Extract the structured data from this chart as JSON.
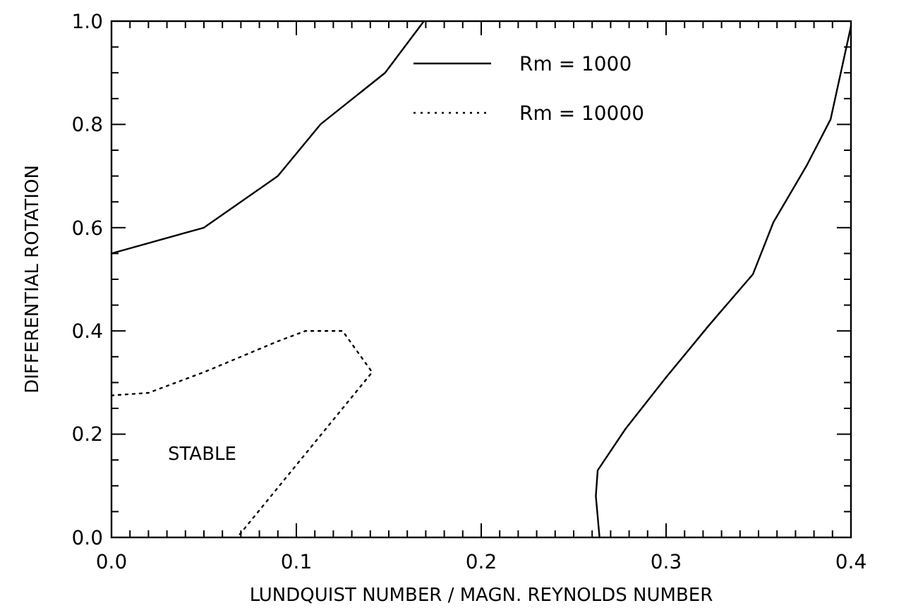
{
  "chart_data": {
    "type": "line",
    "xlabel": "LUNDQUIST NUMBER / MAGN. REYNOLDS NUMBER",
    "ylabel": "DIFFERENTIAL ROTATION",
    "xlim": [
      0,
      0.4
    ],
    "ylim": [
      0,
      1
    ],
    "xticks": [
      {
        "value": 0,
        "label": "0.0"
      },
      {
        "value": 0.01,
        "label": null
      },
      {
        "value": 0.02,
        "label": null
      },
      {
        "value": 0.03,
        "label": null
      },
      {
        "value": 0.04,
        "label": null
      },
      {
        "value": 0.05,
        "label": null
      },
      {
        "value": 0.06,
        "label": null
      },
      {
        "value": 0.07,
        "label": null
      },
      {
        "value": 0.08,
        "label": null
      },
      {
        "value": 0.09,
        "label": null
      },
      {
        "value": 0.1,
        "label": "0.1"
      },
      {
        "value": 0.11,
        "label": null
      },
      {
        "value": 0.12,
        "label": null
      },
      {
        "value": 0.13,
        "label": null
      },
      {
        "value": 0.14,
        "label": null
      },
      {
        "value": 0.15,
        "label": null
      },
      {
        "value": 0.16,
        "label": null
      },
      {
        "value": 0.17,
        "label": null
      },
      {
        "value": 0.18,
        "label": null
      },
      {
        "value": 0.19,
        "label": null
      },
      {
        "value": 0.2,
        "label": "0.2"
      },
      {
        "value": 0.21,
        "label": null
      },
      {
        "value": 0.22,
        "label": null
      },
      {
        "value": 0.23,
        "label": null
      },
      {
        "value": 0.24,
        "label": null
      },
      {
        "value": 0.25,
        "label": null
      },
      {
        "value": 0.26,
        "label": null
      },
      {
        "value": 0.27,
        "label": null
      },
      {
        "value": 0.28,
        "label": null
      },
      {
        "value": 0.29,
        "label": null
      },
      {
        "value": 0.3,
        "label": "0.3"
      },
      {
        "value": 0.31,
        "label": null
      },
      {
        "value": 0.32,
        "label": null
      },
      {
        "value": 0.33,
        "label": null
      },
      {
        "value": 0.34,
        "label": null
      },
      {
        "value": 0.35,
        "label": null
      },
      {
        "value": 0.36,
        "label": null
      },
      {
        "value": 0.37,
        "label": null
      },
      {
        "value": 0.38,
        "label": null
      },
      {
        "value": 0.39,
        "label": null
      },
      {
        "value": 0.4,
        "label": "0.4"
      }
    ],
    "yticks": [
      {
        "value": 0,
        "label": "0.0"
      },
      {
        "value": 0.05,
        "label": null
      },
      {
        "value": 0.1,
        "label": null
      },
      {
        "value": 0.15,
        "label": null
      },
      {
        "value": 0.2,
        "label": "0.2"
      },
      {
        "value": 0.25,
        "label": null
      },
      {
        "value": 0.3,
        "label": null
      },
      {
        "value": 0.35,
        "label": null
      },
      {
        "value": 0.4,
        "label": "0.4"
      },
      {
        "value": 0.45,
        "label": null
      },
      {
        "value": 0.5,
        "label": null
      },
      {
        "value": 0.55,
        "label": null
      },
      {
        "value": 0.6,
        "label": "0.6"
      },
      {
        "value": 0.65,
        "label": null
      },
      {
        "value": 0.7,
        "label": null
      },
      {
        "value": 0.75,
        "label": null
      },
      {
        "value": 0.8,
        "label": "0.8"
      },
      {
        "value": 0.85,
        "label": null
      },
      {
        "value": 0.9,
        "label": null
      },
      {
        "value": 0.95,
        "label": null
      },
      {
        "value": 1,
        "label": "1.0"
      }
    ],
    "legend": "top right",
    "grid": false,
    "series": [
      {
        "name": "Rm = 1000",
        "color": "#000000",
        "line_style": "solid",
        "x": [
          0,
          0.05,
          0.09,
          0.113,
          0.148,
          0.169
        ],
        "values": [
          0.55,
          0.6,
          0.7,
          0.8,
          0.9,
          1.0
        ]
      },
      {
        "name": "Rm = 10000",
        "color": "#000000",
        "line_style": "dotted",
        "x": [
          0,
          0.02,
          0.05,
          0.09,
          0.105,
          0.125,
          0.141,
          0.068
        ],
        "values": [
          0.275,
          0.28,
          0.32,
          0.38,
          0.4,
          0.4,
          0.32,
          0
        ]
      },
      {
        "color": "#000000",
        "line_style": "solid",
        "x": [
          0.264,
          0.262,
          0.263,
          0.278,
          0.3,
          0.323,
          0.347,
          0.358,
          0.376,
          0.389,
          0.4
        ],
        "values": [
          0,
          0.08,
          0.13,
          0.21,
          0.31,
          0.41,
          0.51,
          0.61,
          0.72,
          0.81,
          0.99
        ]
      }
    ],
    "annotations": [
      "STABLE"
    ]
  }
}
